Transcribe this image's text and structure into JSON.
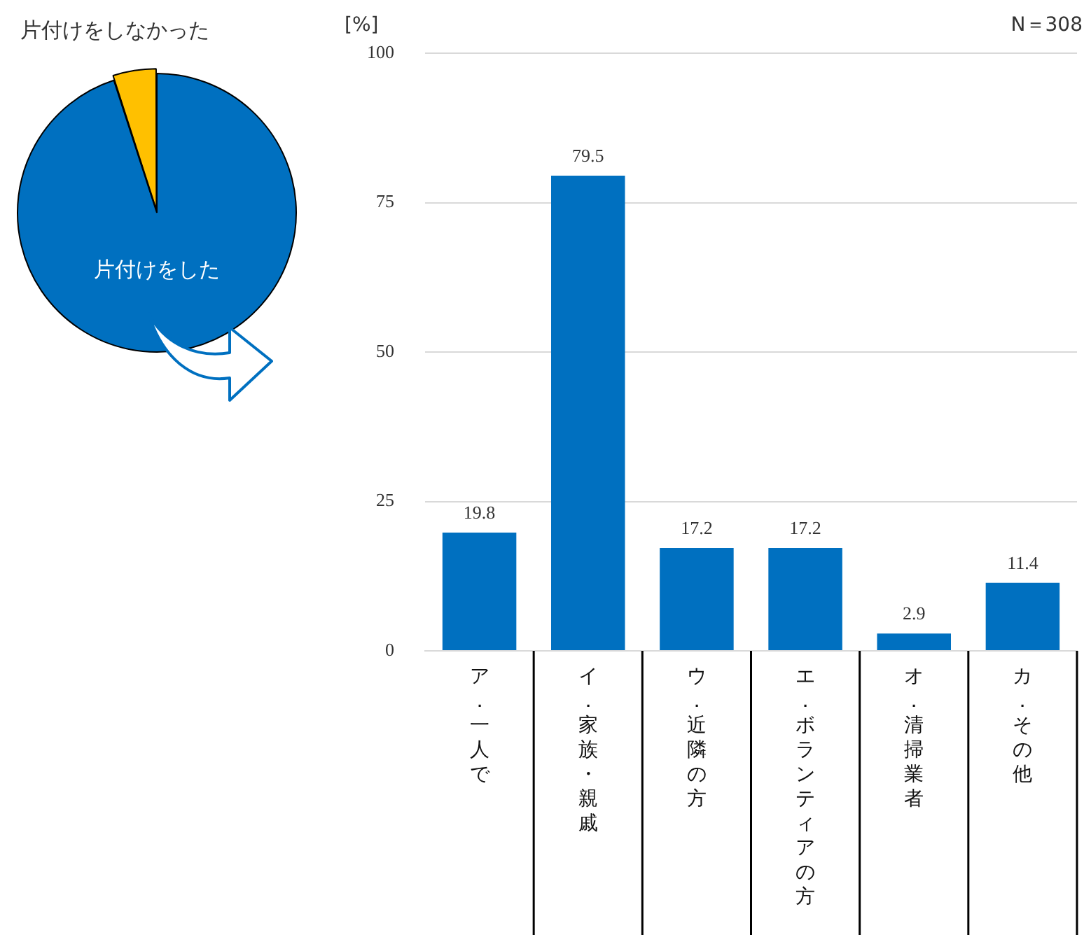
{
  "chart_data": [
    {
      "type": "pie",
      "categories": [
        "片付けをした",
        "片付けをしなかった"
      ],
      "values": [
        95,
        5
      ],
      "colors": [
        "#0070c0",
        "#ffc000"
      ]
    },
    {
      "type": "bar",
      "ylabel": "[%]",
      "annotations": [
        "N＝308"
      ],
      "categories": [
        "ア．一人で",
        "イ．家族・親戚",
        "ウ．近隣の方",
        "エ．ボランティアの方",
        "オ．清掃業者",
        "カ．その他"
      ],
      "values": [
        19.8,
        79.5,
        17.2,
        17.2,
        2.9,
        11.4
      ],
      "color": "#0070c0",
      "ylim": [
        0,
        100
      ],
      "yticks": [
        0,
        25,
        50,
        75,
        100
      ],
      "grid": "y",
      "data_labels": true
    }
  ]
}
